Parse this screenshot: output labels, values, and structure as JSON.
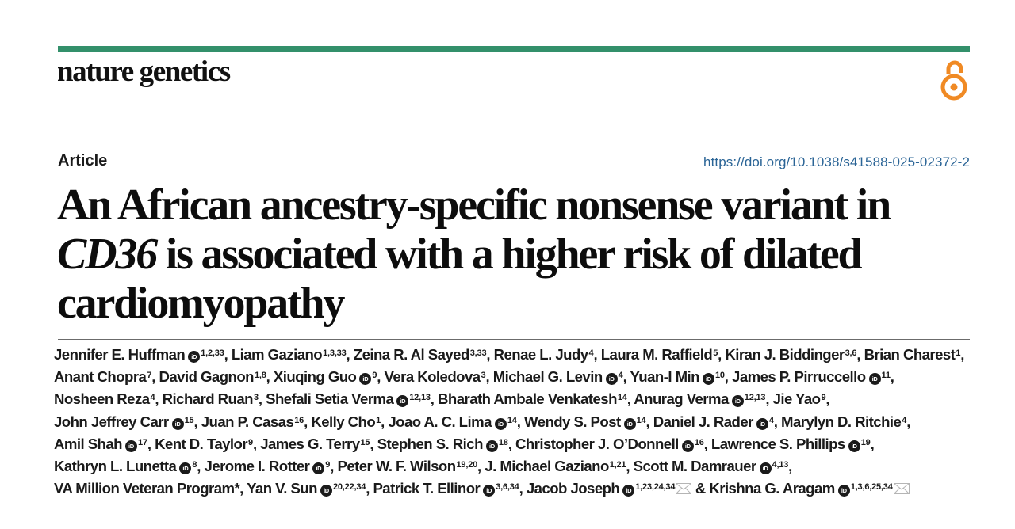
{
  "header": {
    "journal_name": "nature genetics",
    "accent_color": "#33906b",
    "open_access_icon": "open-access-lock-icon",
    "open_access_color": "#f08a24"
  },
  "article": {
    "type": "Article",
    "doi": "https://doi.org/10.1038/s41588-025-02372-2",
    "title_parts": {
      "before": "An African ancestry-specific nonsense variant in ",
      "gene": "CD36",
      "after": " is associated with a higher risk of dilated cardiomyopathy"
    }
  },
  "authors": [
    {
      "name": "Jennifer E. Huffman",
      "orcid": true,
      "aff": "1,2,33",
      "sep": ", "
    },
    {
      "name": "Liam Gaziano",
      "orcid": false,
      "aff": "1,3,33",
      "sep": ", "
    },
    {
      "name": "Zeina R. Al Sayed",
      "orcid": false,
      "aff": "3,33",
      "sep": ", "
    },
    {
      "name": "Renae L. Judy",
      "orcid": false,
      "aff": "4",
      "sep": ", "
    },
    {
      "name": "Laura M. Raffield",
      "orcid": false,
      "aff": "5",
      "sep": ", "
    },
    {
      "name": "Kiran J. Biddinger",
      "orcid": false,
      "aff": "3,6",
      "sep": ", "
    },
    {
      "name": "Brian Charest",
      "orcid": false,
      "aff": "1",
      "sep": ", "
    },
    {
      "name": "Anant Chopra",
      "orcid": false,
      "aff": "7",
      "sep": ", "
    },
    {
      "name": "David Gagnon",
      "orcid": false,
      "aff": "1,8",
      "sep": ", "
    },
    {
      "name": "Xiuqing Guo",
      "orcid": true,
      "aff": "9",
      "sep": ", "
    },
    {
      "name": "Vera Koledova",
      "orcid": false,
      "aff": "3",
      "sep": ", "
    },
    {
      "name": "Michael G. Levin",
      "orcid": true,
      "aff": "4",
      "sep": ", "
    },
    {
      "name": "Yuan-I Min",
      "orcid": true,
      "aff": "10",
      "sep": ", "
    },
    {
      "name": "James P. Pirruccello",
      "orcid": true,
      "aff": "11",
      "sep": ", "
    },
    {
      "name": "Nosheen Reza",
      "orcid": false,
      "aff": "4",
      "sep": ", "
    },
    {
      "name": "Richard Ruan",
      "orcid": false,
      "aff": "3",
      "sep": ", "
    },
    {
      "name": "Shefali Setia Verma",
      "orcid": true,
      "aff": "12,13",
      "sep": ", "
    },
    {
      "name": "Bharath Ambale Venkatesh",
      "orcid": false,
      "aff": "14",
      "sep": ", "
    },
    {
      "name": "Anurag Verma",
      "orcid": true,
      "aff": "12,13",
      "sep": ", "
    },
    {
      "name": "Jie Yao",
      "orcid": false,
      "aff": "9",
      "sep": ", "
    },
    {
      "name": "John Jeffrey Carr",
      "orcid": true,
      "aff": "15",
      "sep": ", "
    },
    {
      "name": "Juan P. Casas",
      "orcid": false,
      "aff": "16",
      "sep": ", "
    },
    {
      "name": "Kelly Cho",
      "orcid": false,
      "aff": "1",
      "sep": ", "
    },
    {
      "name": "Joao A. C. Lima",
      "orcid": true,
      "aff": "14",
      "sep": ", "
    },
    {
      "name": "Wendy S. Post",
      "orcid": true,
      "aff": "14",
      "sep": ", "
    },
    {
      "name": "Daniel J. Rader",
      "orcid": true,
      "aff": "4",
      "sep": ", "
    },
    {
      "name": "Marylyn D. Ritchie",
      "orcid": false,
      "aff": "4",
      "sep": ", "
    },
    {
      "name": "Amil Shah",
      "orcid": true,
      "aff": "17",
      "sep": ", "
    },
    {
      "name": "Kent D. Taylor",
      "orcid": false,
      "aff": "9",
      "sep": ", "
    },
    {
      "name": "James G. Terry",
      "orcid": false,
      "aff": "15",
      "sep": ", "
    },
    {
      "name": "Stephen S. Rich",
      "orcid": true,
      "aff": "18",
      "sep": ", "
    },
    {
      "name": "Christopher J. O’Donnell",
      "orcid": true,
      "aff": "16",
      "sep": ", "
    },
    {
      "name": "Lawrence S. Phillips",
      "orcid": true,
      "aff": "19",
      "sep": ", "
    },
    {
      "name": "Kathryn L. Lunetta",
      "orcid": true,
      "aff": "8",
      "sep": ", "
    },
    {
      "name": "Jerome I. Rotter",
      "orcid": true,
      "aff": "9",
      "sep": ", "
    },
    {
      "name": "Peter W. F. Wilson",
      "orcid": false,
      "aff": "19,20",
      "sep": ", "
    },
    {
      "name": "J. Michael Gaziano",
      "orcid": false,
      "aff": "1,21",
      "sep": ", "
    },
    {
      "name": "Scott M. Damrauer",
      "orcid": true,
      "aff": "4,13",
      "sep": ", "
    },
    {
      "name": "VA Million Veteran Program*",
      "orcid": false,
      "aff": "",
      "sep": ", "
    },
    {
      "name": "Yan V. Sun",
      "orcid": true,
      "aff": "20,22,34",
      "sep": ", "
    },
    {
      "name": "Patrick T. Ellinor",
      "orcid": true,
      "aff": "3,6,34",
      "sep": ", "
    },
    {
      "name": "Jacob Joseph",
      "orcid": true,
      "aff": "1,23,24,34",
      "mail": true,
      "sep": " & "
    },
    {
      "name": "Krishna G. Aragam",
      "orcid": true,
      "aff": "1,3,6,25,34",
      "mail": true,
      "sep": ""
    }
  ],
  "icons": {
    "orcid_label": "iD"
  }
}
